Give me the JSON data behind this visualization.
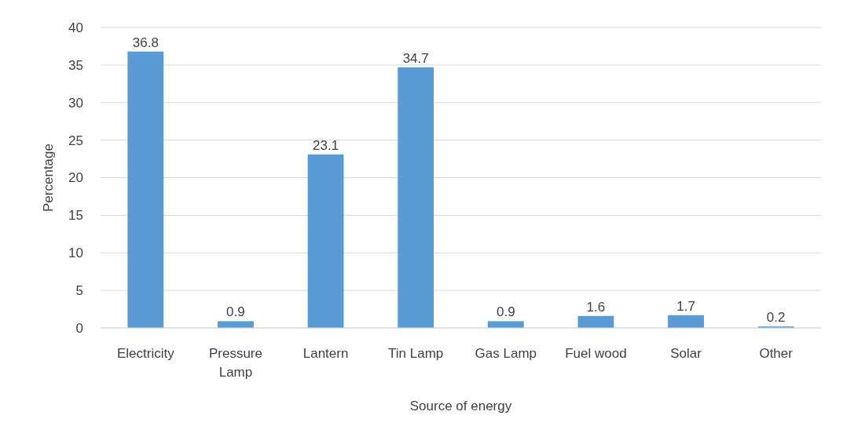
{
  "chart_data": {
    "type": "bar",
    "xlabel": "Source of energy",
    "ylabel": "Percentage",
    "categories": [
      "Electricity",
      "Pressure Lamp",
      "Lantern",
      "Tin Lamp",
      "Gas Lamp",
      "Fuel wood",
      "Solar",
      "Other"
    ],
    "values": [
      36.8,
      0.9,
      23.1,
      34.7,
      0.9,
      1.6,
      1.7,
      0.2
    ],
    "color": "#5b9bd5",
    "ylim": [
      0,
      40
    ],
    "yticks": [
      0,
      5,
      10,
      15,
      20,
      25,
      30,
      35,
      40
    ],
    "grid": "y",
    "data_labels": true
  }
}
